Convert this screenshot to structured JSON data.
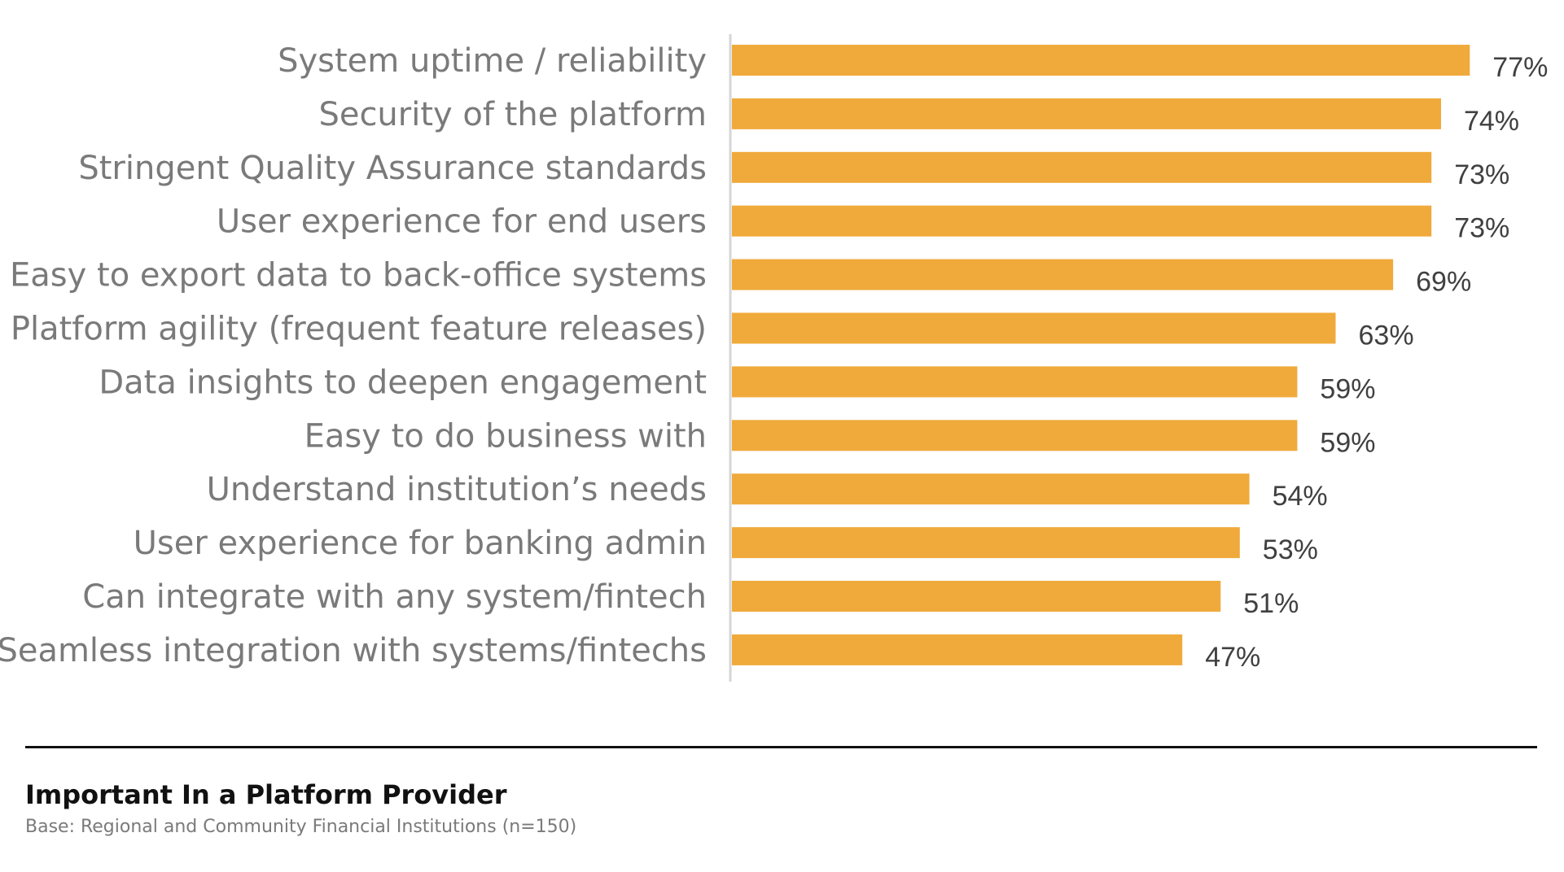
{
  "chart_data": {
    "type": "bar",
    "orientation": "horizontal",
    "categories": [
      "System uptime / reliability",
      "Security of the platform",
      "Stringent Quality Assurance standards",
      "User experience for end users",
      "Easy to export data to back-office systems",
      "Platform agility (frequent feature releases)",
      "Data insights to deepen engagement",
      "Easy to do business with",
      "Understand institution’s needs",
      "User experience for banking admin",
      "Can integrate with any system/fintech",
      "Seamless integration with systems/fintechs"
    ],
    "values": [
      77,
      74,
      73,
      73,
      69,
      63,
      59,
      59,
      54,
      53,
      51,
      47
    ],
    "value_labels": [
      "77%",
      "74%",
      "73%",
      "73%",
      "69%",
      "63%",
      "59%",
      "59%",
      "54%",
      "53%",
      "51%",
      "47%"
    ],
    "xlim": [
      0,
      100
    ],
    "unit": "%",
    "grid": false,
    "legend": "none",
    "colors": {
      "bar": "#F0AA3B",
      "axis": "#d6d6d6",
      "category_text": "#7a7a7a",
      "value_text": "#404040"
    }
  },
  "footer": {
    "title": "Important In a Platform Provider",
    "base_note": "Base: Regional and Community Financial Institutions (n=150)"
  }
}
